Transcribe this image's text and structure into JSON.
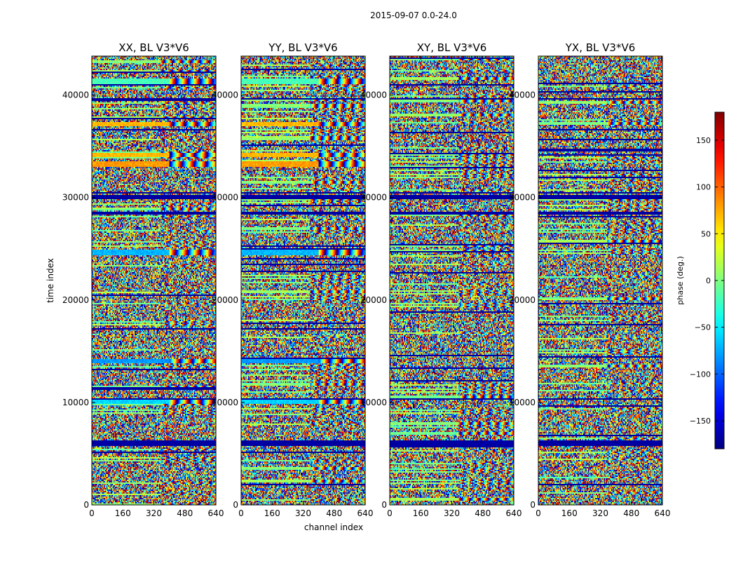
{
  "chart_data": {
    "type": "heatmap",
    "suptitle": "2015-09-07 0.0-24.0",
    "xlabel": "channel index",
    "ylabel": "time index",
    "x_ticks": [
      "0",
      "160",
      "320",
      "480",
      "640"
    ],
    "x_tick_values": [
      0,
      160,
      320,
      480,
      640
    ],
    "xlim": [
      0,
      640
    ],
    "y_ticks": [
      "0",
      "10000",
      "20000",
      "30000",
      "40000"
    ],
    "y_tick_values": [
      0,
      10000,
      20000,
      30000,
      40000
    ],
    "ylim": [
      0,
      43800
    ],
    "colormap": "jet",
    "panels": [
      {
        "title": "XX, BL V3*V6",
        "seed": 11
      },
      {
        "title": "YY, BL V3*V6",
        "seed": 23
      },
      {
        "title": "XY, BL V3*V6",
        "seed": 37
      },
      {
        "title": "YX, BL V3*V6",
        "seed": 51
      }
    ],
    "colorbar": {
      "label": "phase (deg.)",
      "range": [
        -180,
        180
      ],
      "ticks": [
        "150",
        "100",
        "50",
        "0",
        "−50",
        "−100",
        "−150"
      ],
      "tick_values": [
        150,
        100,
        50,
        0,
        -50,
        -100,
        -150
      ]
    },
    "flagged_time_bands": [
      [
        5700,
        6300
      ],
      [
        29800,
        30300
      ],
      [
        30350,
        30500
      ],
      [
        28400,
        28600
      ],
      [
        10200,
        10400
      ],
      [
        39500,
        39700
      ]
    ],
    "smooth_time_bands": [
      {
        "range": [
          41000,
          41600
        ],
        "phase": -20,
        "panels": [
          0,
          1
        ]
      },
      {
        "range": [
          37000,
          37400
        ],
        "phase": 70,
        "panels": [
          0,
          1
        ]
      },
      {
        "range": [
          33000,
          33500
        ],
        "phase": 80,
        "panels": [
          0,
          1
        ]
      },
      {
        "range": [
          34000,
          34400
        ],
        "phase": 70,
        "panels": [
          0,
          1
        ]
      },
      {
        "range": [
          24400,
          24900
        ],
        "phase": -70,
        "panels": [
          0,
          1
        ]
      },
      {
        "range": [
          13800,
          14200
        ],
        "phase": -80,
        "panels": [
          0,
          1
        ]
      },
      {
        "range": [
          9900,
          10200
        ],
        "phase": -60,
        "panels": [
          0,
          1
        ]
      }
    ]
  }
}
